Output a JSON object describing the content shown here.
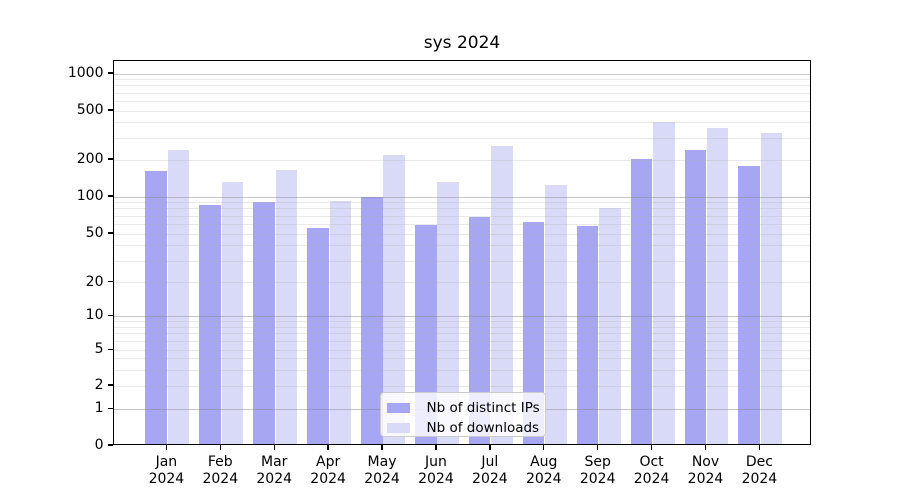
{
  "chart_data": {
    "type": "bar",
    "title": "sys 2024",
    "yscale": "log",
    "ylim": [
      0,
      1000
    ],
    "y_ticks": [
      0,
      1,
      2,
      5,
      10,
      20,
      50,
      100,
      200,
      500,
      1000
    ],
    "grid": true,
    "months": [
      "Jan",
      "Feb",
      "Mar",
      "Apr",
      "May",
      "Jun",
      "Jul",
      "Aug",
      "Sep",
      "Oct",
      "Nov",
      "Dec"
    ],
    "x_tick_year": "2024",
    "categories": [
      "Jan 2024",
      "Feb 2024",
      "Mar 2024",
      "Apr 2024",
      "May 2024",
      "Jun 2024",
      "Jul 2024",
      "Aug 2024",
      "Sep 2024",
      "Oct 2024",
      "Nov 2024",
      "Dec 2024"
    ],
    "series": [
      {
        "name": "Nb of distinct IPs",
        "color": "#a6a6f2",
        "values": [
          158,
          83,
          88,
          54,
          97,
          57,
          66,
          60,
          56,
          196,
          232,
          172
        ]
      },
      {
        "name": "Nb of downloads",
        "color": "#d9d9f8",
        "values": [
          233,
          128,
          160,
          90,
          212,
          127,
          250,
          120,
          78,
          390,
          348,
          322
        ]
      }
    ],
    "legend_position": "inside-bottom-center"
  }
}
